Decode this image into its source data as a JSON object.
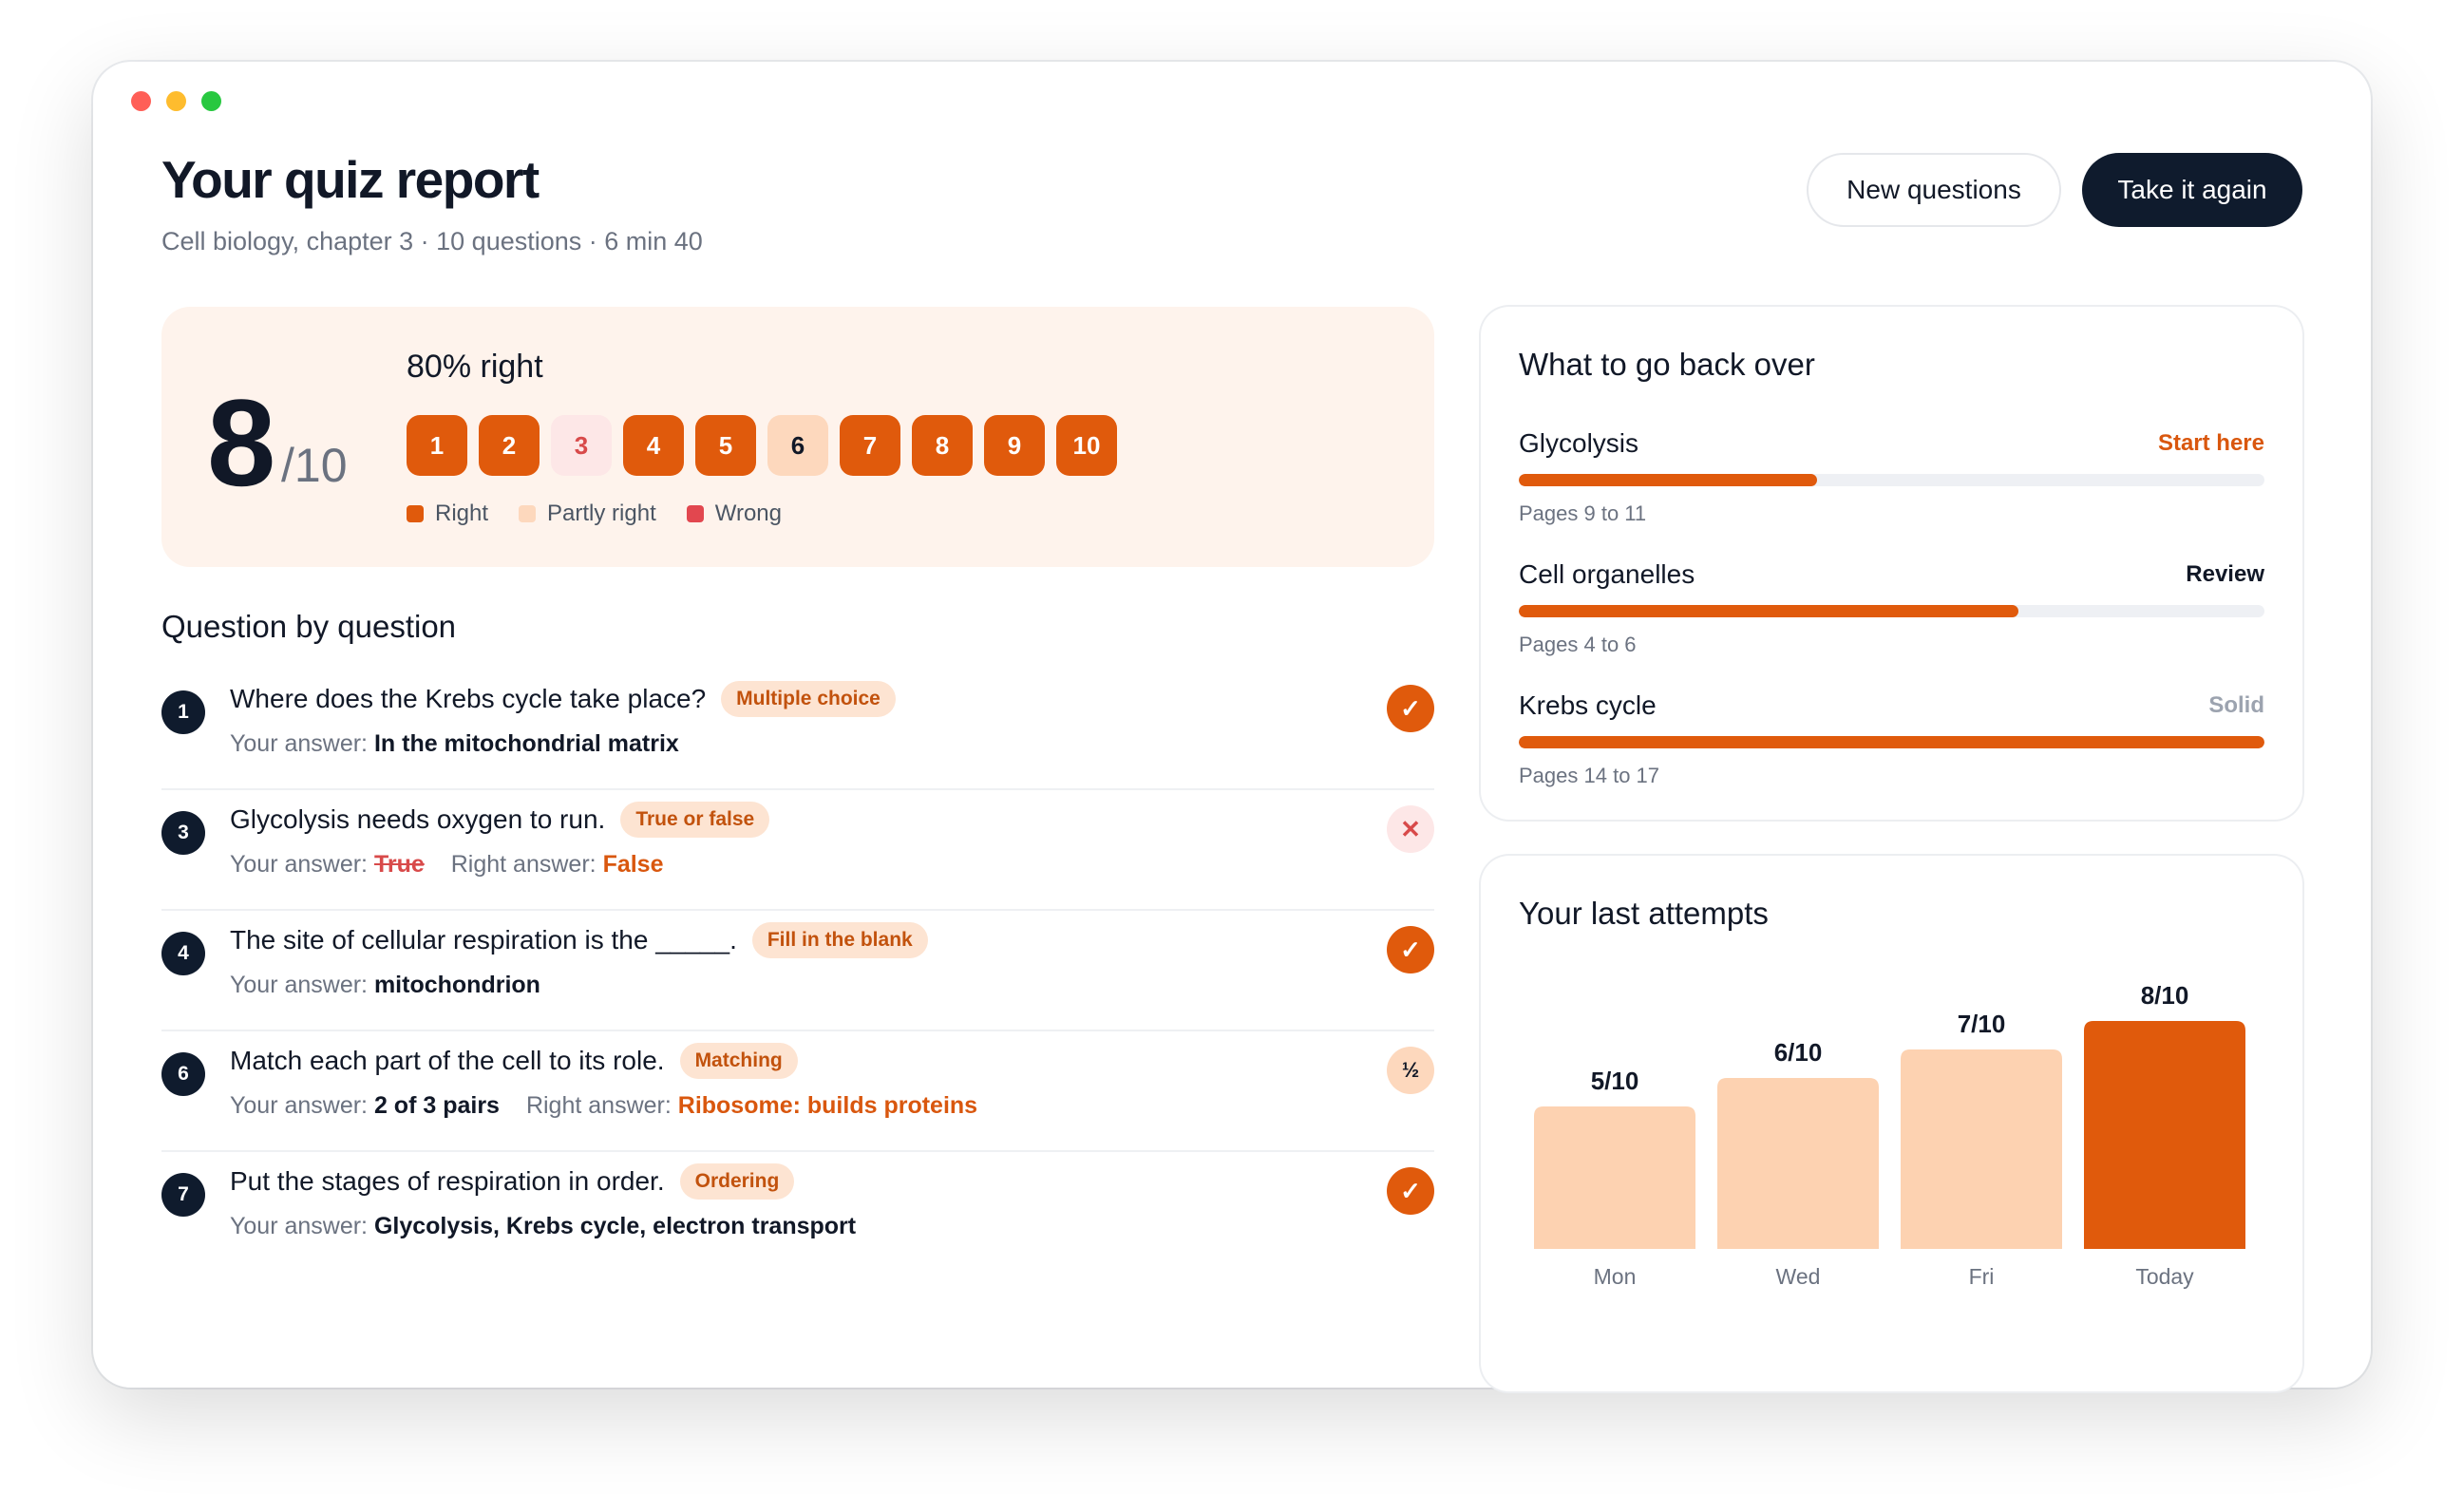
{
  "header": {
    "title": "Your quiz report",
    "subtitle": "Cell biology, chapter 3 · 10 questions · 6 min 40",
    "new_questions_label": "New questions",
    "take_again_label": "Take it again"
  },
  "score": {
    "value": "8",
    "denominator": "/10",
    "percent_label": "80% right",
    "questions": [
      {
        "n": "1",
        "result": "right"
      },
      {
        "n": "2",
        "result": "right"
      },
      {
        "n": "3",
        "result": "wrong"
      },
      {
        "n": "4",
        "result": "right"
      },
      {
        "n": "5",
        "result": "right"
      },
      {
        "n": "6",
        "result": "partly"
      },
      {
        "n": "7",
        "result": "right"
      },
      {
        "n": "8",
        "result": "right"
      },
      {
        "n": "9",
        "result": "right"
      },
      {
        "n": "10",
        "result": "right"
      }
    ],
    "legend": {
      "right": "Right",
      "partly": "Partly right",
      "wrong": "Wrong"
    }
  },
  "colors": {
    "right": "#e05a0c",
    "partly": "#fdd8bd",
    "wrong": "#e2474f",
    "dark": "#0f1b2d"
  },
  "question_section": {
    "title": "Question by question",
    "your_answer_label": "Your answer:",
    "right_answer_label": "Right answer:",
    "items": [
      {
        "num": "1",
        "text": "Where does the Krebs cycle take place?",
        "tag": "Multiple choice",
        "your_answer": "In the mitochondrial matrix",
        "right_answer": "",
        "status": "right"
      },
      {
        "num": "3",
        "text": "Glycolysis needs oxygen to run.",
        "tag": "True or false",
        "your_answer": "True",
        "right_answer": "False",
        "status": "wrong"
      },
      {
        "num": "4",
        "text": "The site of cellular respiration is the _____.",
        "tag": "Fill in the blank",
        "your_answer": "mitochondrion",
        "right_answer": "",
        "status": "right"
      },
      {
        "num": "6",
        "text": "Match each part of the cell to its role.",
        "tag": "Matching",
        "your_answer": "2 of 3 pairs",
        "right_answer": "Ribosome: builds proteins",
        "status": "partly"
      },
      {
        "num": "7",
        "text": "Put the stages of respiration in order.",
        "tag": "Ordering",
        "your_answer": "Glycolysis, Krebs cycle, electron transport",
        "right_answer": "",
        "status": "right"
      }
    ]
  },
  "review": {
    "title": "What to go back over",
    "topics": [
      {
        "name": "Glycolysis",
        "status": "Start here",
        "status_kind": "start",
        "mastery": 0.4,
        "pages": "Pages 9 to 11"
      },
      {
        "name": "Cell organelles",
        "status": "Review",
        "status_kind": "review",
        "mastery": 0.67,
        "pages": "Pages 4 to 6"
      },
      {
        "name": "Krebs cycle",
        "status": "Solid",
        "status_kind": "solid",
        "mastery": 1.0,
        "pages": "Pages 14 to 17"
      }
    ]
  },
  "attempts": {
    "title": "Your last attempts",
    "chart_data": {
      "type": "bar",
      "categories": [
        "Mon",
        "Wed",
        "Fri",
        "Today"
      ],
      "values": [
        5,
        6,
        7,
        8
      ],
      "labels": [
        "5/10",
        "6/10",
        "7/10",
        "8/10"
      ],
      "ylim": [
        0,
        8
      ],
      "colors": [
        "#fdd2b1",
        "#fdd2b1",
        "#fdd2b1",
        "#e05a0c"
      ]
    }
  }
}
